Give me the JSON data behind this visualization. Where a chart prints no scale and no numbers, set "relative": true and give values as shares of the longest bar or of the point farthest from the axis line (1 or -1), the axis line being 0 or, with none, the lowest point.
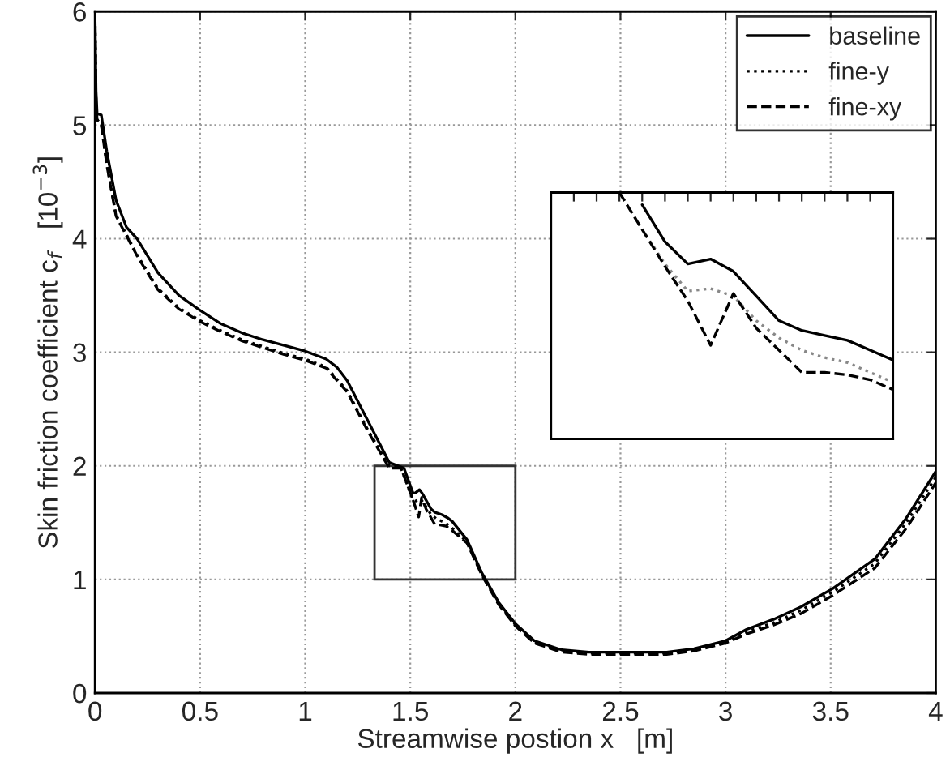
{
  "chart_data": [
    {
      "type": "line",
      "xlabel": "Streamwise postion x   [m]",
      "ylabel": "Skin friction coefficient c$_{f}$   [10$^{−3}$]",
      "xlim": [
        0,
        4
      ],
      "ylim": [
        0,
        6
      ],
      "xticks": [
        0,
        0.5,
        1,
        1.5,
        2,
        2.5,
        3,
        3.5,
        4
      ],
      "yticks": [
        0,
        1,
        2,
        3,
        4,
        5,
        6
      ],
      "grid": true,
      "legend": "top right",
      "marker": "none",
      "series": [
        {
          "name": "baseline",
          "color": "#000000",
          "line_style": "solid",
          "x": [
            0,
            0.005,
            0.01,
            0.03,
            0.056,
            0.1,
            0.15,
            0.2,
            0.3,
            0.4,
            0.5,
            0.6,
            0.7,
            0.8,
            0.9,
            1.0,
            1.1,
            1.15,
            1.2,
            1.3,
            1.4,
            1.47,
            1.513,
            1.523,
            1.544,
            1.556,
            1.599,
            1.618,
            1.651,
            1.68,
            1.7,
            1.77,
            1.84,
            1.92,
            2.0,
            2.09,
            2.22,
            2.35,
            2.5,
            2.72,
            2.85,
            3.0,
            3.1,
            3.23,
            3.36,
            3.51,
            3.71,
            3.86,
            4.0
          ],
          "values": [
            6,
            5.3,
            5.1,
            5.09,
            4.77,
            4.34,
            4.1,
            4.0,
            3.7,
            3.5,
            3.37,
            3.25,
            3.17,
            3.11,
            3.06,
            3.01,
            2.94,
            2.87,
            2.75,
            2.39,
            2.03,
            1.98,
            1.76,
            1.76,
            1.79,
            1.76,
            1.62,
            1.59,
            1.57,
            1.54,
            1.51,
            1.35,
            1.06,
            0.8,
            0.61,
            0.46,
            0.38,
            0.36,
            0.36,
            0.36,
            0.39,
            0.46,
            0.56,
            0.65,
            0.76,
            0.92,
            1.18,
            1.54,
            1.95
          ]
        },
        {
          "name": "fine-y",
          "color": "#000000",
          "line_style": "dotted",
          "x": [
            0,
            0.005,
            0.01,
            0.03,
            0.056,
            0.1,
            0.2,
            0.3,
            0.4,
            0.5,
            0.6,
            0.7,
            0.8,
            0.9,
            1.0,
            1.1,
            1.2,
            1.3,
            1.4,
            1.456,
            1.513,
            1.525,
            1.547,
            1.561,
            1.599,
            1.628,
            1.666,
            1.7,
            1.77,
            1.84,
            1.92,
            2.0,
            2.09,
            2.22,
            2.35,
            2.5,
            2.72,
            2.85,
            3.0,
            3.1,
            3.23,
            3.36,
            3.51,
            3.71,
            3.86,
            4.0
          ],
          "values": [
            6,
            5.2,
            5.05,
            5.0,
            4.66,
            4.21,
            3.86,
            3.56,
            3.39,
            3.28,
            3.19,
            3.11,
            3.05,
            2.99,
            2.94,
            2.87,
            2.66,
            2.31,
            2.0,
            1.98,
            1.7,
            1.69,
            1.71,
            1.68,
            1.57,
            1.53,
            1.5,
            1.45,
            1.33,
            1.05,
            0.79,
            0.6,
            0.45,
            0.37,
            0.35,
            0.35,
            0.35,
            0.38,
            0.45,
            0.54,
            0.62,
            0.73,
            0.89,
            1.14,
            1.5,
            1.9
          ]
        },
        {
          "name": "fine-xy",
          "color": "#000000",
          "line_style": "dashed",
          "x": [
            0,
            0.005,
            0.01,
            0.03,
            0.056,
            0.1,
            0.2,
            0.3,
            0.4,
            0.5,
            0.6,
            0.7,
            0.8,
            0.9,
            1.0,
            1.1,
            1.2,
            1.3,
            1.4,
            1.456,
            1.511,
            1.54,
            1.554,
            1.575,
            1.618,
            1.642,
            1.67,
            1.7,
            1.77,
            1.84,
            1.92,
            2.0,
            2.09,
            2.22,
            2.35,
            2.5,
            2.72,
            2.85,
            3.0,
            3.1,
            3.23,
            3.36,
            3.51,
            3.71,
            3.86,
            4.0
          ],
          "values": [
            6,
            5.2,
            5.05,
            5.0,
            4.65,
            4.2,
            3.85,
            3.55,
            3.38,
            3.27,
            3.18,
            3.1,
            3.04,
            2.98,
            2.93,
            2.86,
            2.65,
            2.3,
            1.98,
            1.98,
            1.71,
            1.55,
            1.72,
            1.62,
            1.48,
            1.48,
            1.47,
            1.43,
            1.32,
            1.04,
            0.78,
            0.59,
            0.44,
            0.36,
            0.34,
            0.34,
            0.34,
            0.37,
            0.44,
            0.52,
            0.6,
            0.7,
            0.86,
            1.1,
            1.45,
            1.85
          ]
        }
      ]
    },
    {
      "type": "line",
      "relative": true,
      "categories": [
        null,
        null,
        null,
        null,
        null,
        null,
        null,
        null,
        null,
        null,
        null,
        null,
        null,
        null,
        null,
        null
      ],
      "marker": "none",
      "series": [
        {
          "color": "#000000",
          "line_style": "solid",
          "values": [
            null,
            null,
            null,
            null,
            0.95,
            0.8,
            0.71,
            0.73,
            0.68,
            0.58,
            0.48,
            0.44,
            0.42,
            0.4,
            0.36,
            0.32
          ]
        },
        {
          "color": "#888888",
          "line_style": "dotted",
          "values": [
            null,
            null,
            null,
            1.0,
            0.85,
            0.71,
            0.6,
            0.61,
            0.58,
            0.48,
            0.41,
            0.36,
            0.33,
            0.31,
            0.27,
            0.23
          ]
        },
        {
          "color": "#000000",
          "line_style": "dashed",
          "values": [
            null,
            null,
            null,
            1.0,
            0.85,
            0.7,
            0.56,
            0.38,
            0.59,
            0.45,
            0.36,
            0.27,
            0.27,
            0.26,
            0.24,
            0.2
          ]
        }
      ]
    }
  ]
}
